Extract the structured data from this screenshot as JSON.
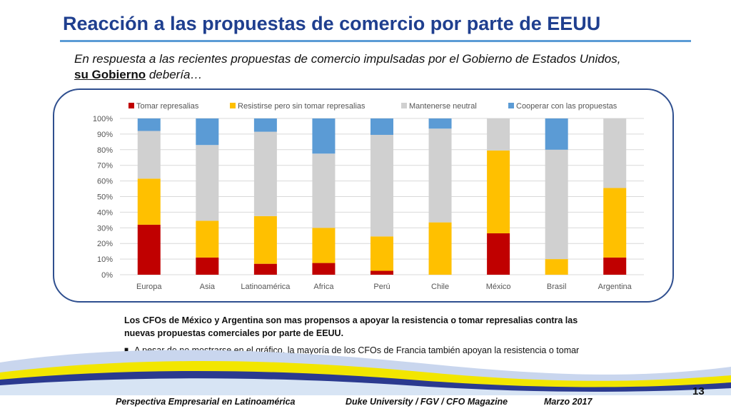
{
  "slide": {
    "title": "Reacción a las propuestas de comercio por parte de EEUU",
    "subtitle_main": "En respuesta a las recientes propuestas de comercio impulsadas por el Gobierno de Estados Unidos,",
    "subtitle_emph": "su Gobierno",
    "subtitle_tail": " debería…",
    "note_bold": "Los CFOs de México y Argentina son mas propensos a apoyar la resistencia o tomar represalias contra las nuevas propuestas comerciales por parte de EEUU.",
    "bullet_text": "A pesar de no mostrarse en el gráfico, la mayoría de los CFOs de Francia también apoyan la resistencia o tomar represalias.",
    "footer_left": "Perspectiva Empresarial en Latinoamérica",
    "footer_mid": "Duke University / FGV / CFO Magazine",
    "footer_right": "Marzo 2017",
    "page_number": "13"
  },
  "chart_data": {
    "type": "bar",
    "stacked": true,
    "categories": [
      "Europa",
      "Asia",
      "Latinoamérica",
      "Africa",
      "Perú",
      "Chile",
      "México",
      "Brasil",
      "Argentina"
    ],
    "series": [
      {
        "name": "Tomar represalias",
        "color": "#c00000",
        "values": [
          32,
          11,
          7,
          7.5,
          2.5,
          0,
          26.5,
          0,
          11
        ]
      },
      {
        "name": "Resistirse pero sin tomar represalias",
        "color": "#ffc000",
        "values": [
          29.5,
          23.5,
          30.5,
          22.5,
          22,
          33.5,
          53,
          10,
          44.5
        ]
      },
      {
        "name": "Mantenerse neutral",
        "color": "#d0d0d0",
        "values": [
          30.5,
          48.5,
          54,
          47.5,
          65,
          60,
          20.5,
          70,
          44.5
        ]
      },
      {
        "name": "Cooperar con las propuestas",
        "color": "#5b9bd5",
        "values": [
          8,
          17,
          8.5,
          22.5,
          10.5,
          6.5,
          0,
          20,
          0
        ]
      }
    ],
    "ylim": [
      0,
      100
    ],
    "yticks": [
      "0%",
      "10%",
      "20%",
      "30%",
      "40%",
      "50%",
      "60%",
      "70%",
      "80%",
      "90%",
      "100%"
    ],
    "legend_position": "top"
  }
}
